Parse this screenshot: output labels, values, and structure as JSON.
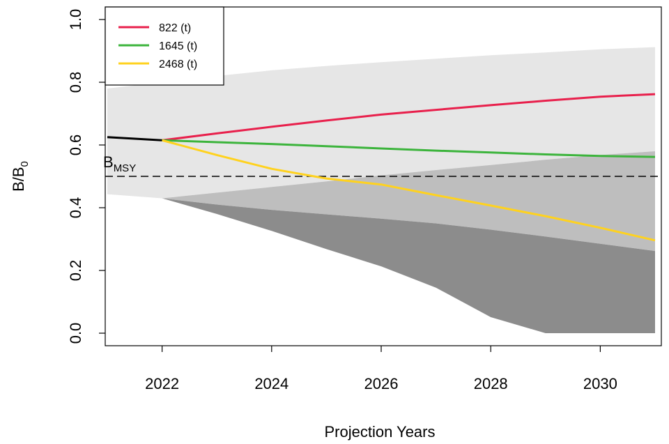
{
  "chart_data": {
    "type": "line",
    "xlabel": "Projection Years",
    "ylabel": "B/B",
    "ylabel_subscript": "0",
    "xlim": [
      2021,
      2031
    ],
    "ylim": [
      0,
      1
    ],
    "x_ticks": [
      2022,
      2024,
      2026,
      2028,
      2030
    ],
    "y_ticks": [
      0.0,
      0.2,
      0.4,
      0.6,
      0.8,
      1.0
    ],
    "y_tick_labels": [
      "0.0",
      "0.2",
      "0.4",
      "0.6",
      "0.8",
      "1.0"
    ],
    "reference_line": {
      "y": 0.5,
      "label": "B",
      "label_subscript": "MSY",
      "style": "dashed"
    },
    "history": {
      "x": [
        2021,
        2022
      ],
      "y": [
        0.625,
        0.615
      ],
      "color": "#000000"
    },
    "series": [
      {
        "name": "822 (t)",
        "color": "#e8204c",
        "x": [
          2022,
          2023,
          2024,
          2025,
          2026,
          2027,
          2028,
          2029,
          2030,
          2031
        ],
        "y": [
          0.615,
          0.637,
          0.658,
          0.678,
          0.697,
          0.712,
          0.727,
          0.741,
          0.754,
          0.762
        ]
      },
      {
        "name": "1645 (t)",
        "color": "#3cb43c",
        "x": [
          2022,
          2023,
          2024,
          2025,
          2026,
          2027,
          2028,
          2029,
          2030,
          2031
        ],
        "y": [
          0.615,
          0.609,
          0.603,
          0.596,
          0.589,
          0.582,
          0.576,
          0.57,
          0.565,
          0.562
        ]
      },
      {
        "name": "2468 (t)",
        "color": "#ffd21e",
        "x": [
          2022,
          2023,
          2024,
          2025,
          2026,
          2027,
          2028,
          2029,
          2030,
          2031
        ],
        "y": [
          0.615,
          0.568,
          0.524,
          0.493,
          0.474,
          0.44,
          0.407,
          0.373,
          0.336,
          0.296
        ]
      }
    ],
    "bands": [
      {
        "color": "#e6e6e6",
        "x": [
          2021,
          2022,
          2023,
          2024,
          2025,
          2026,
          2027,
          2028,
          2029,
          2030,
          2031
        ],
        "upper": [
          0.78,
          0.8,
          0.82,
          0.838,
          0.852,
          0.864,
          0.875,
          0.886,
          0.895,
          0.905,
          0.912
        ],
        "lower": [
          0.443,
          0.43,
          0.448,
          0.466,
          0.484,
          0.503,
          0.52,
          0.536,
          0.553,
          0.568,
          0.58
        ]
      },
      {
        "color": "#bebebe",
        "x": [
          2022,
          2023,
          2024,
          2025,
          2026,
          2027,
          2028,
          2029,
          2030,
          2031
        ],
        "upper": [
          0.43,
          0.448,
          0.466,
          0.484,
          0.503,
          0.52,
          0.536,
          0.553,
          0.568,
          0.58
        ],
        "lower": [
          0.43,
          0.41,
          0.393,
          0.379,
          0.365,
          0.35,
          0.33,
          0.308,
          0.285,
          0.262
        ]
      },
      {
        "color": "#8c8c8c",
        "x": [
          2022,
          2023,
          2024,
          2025,
          2026,
          2027,
          2028,
          2029,
          2030,
          2031
        ],
        "upper": [
          0.43,
          0.41,
          0.393,
          0.379,
          0.365,
          0.35,
          0.33,
          0.308,
          0.285,
          0.262
        ],
        "lower": [
          0.43,
          0.38,
          0.326,
          0.268,
          0.213,
          0.145,
          0.051,
          0.0,
          0.0,
          0.0
        ]
      }
    ],
    "legend": {
      "placement": "top-left"
    }
  }
}
